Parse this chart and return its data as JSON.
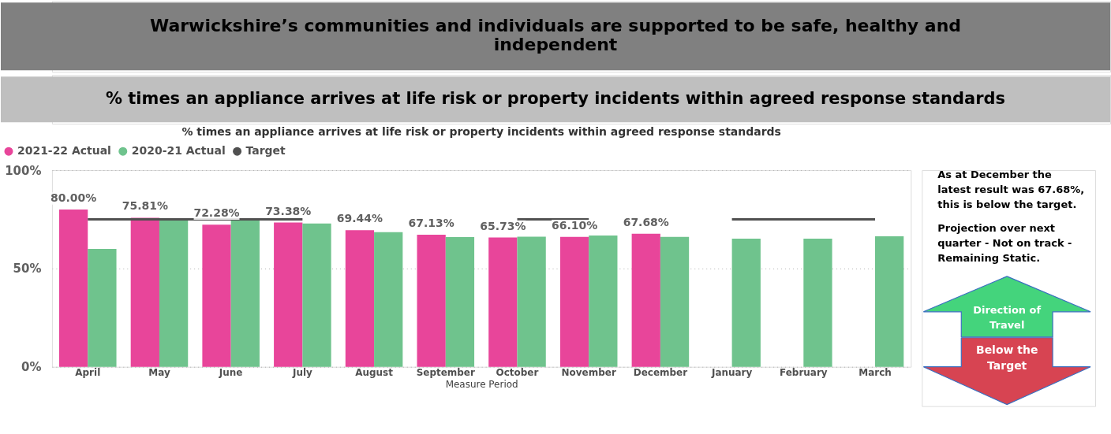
{
  "chart_data": {
    "type": "bar",
    "title": "Warwickshire’s communities and individuals are supported to be safe, healthy and\nindependent",
    "subtitle": "% times an appliance arrives at life risk or property incidents within agreed response standards",
    "xlabel": "Measure Period",
    "categories": [
      "April",
      "May",
      "June",
      "July",
      "August",
      "September",
      "October",
      "November",
      "December",
      "January",
      "February",
      "March"
    ],
    "series": [
      {
        "name": "2021-22 Actual",
        "color": "#e8459a",
        "values": [
          80.0,
          75.81,
          72.28,
          73.38,
          69.44,
          67.13,
          65.73,
          66.1,
          67.68,
          null,
          null,
          null
        ],
        "value_labels": [
          "80.00%",
          "75.81%",
          "72.28%",
          "73.38%",
          "69.44%",
          "67.13%",
          "65.73%",
          "66.10%",
          "67.68%",
          null,
          null,
          null
        ]
      },
      {
        "name": "2020-21 Actual",
        "color": "#6fc38d",
        "values": [
          60.0,
          75.0,
          75.2,
          72.9,
          68.5,
          66.0,
          66.2,
          66.8,
          66.1,
          65.2,
          65.2,
          66.4
        ]
      },
      {
        "name": "Target",
        "type": "line",
        "color": "#505050",
        "values": [
          75,
          75,
          75,
          75,
          null,
          null,
          75,
          75,
          null,
          75,
          75,
          75
        ]
      }
    ],
    "ylim": [
      0,
      100
    ],
    "yticks": [
      {
        "value": 0,
        "label": "0%"
      },
      {
        "value": 50,
        "label": "50%"
      },
      {
        "value": 100,
        "label": "100%"
      }
    ],
    "grid": "y",
    "legend": "top left",
    "annotations": [
      "% times an appliance arrives at life risk or property incidents within agreed response standards",
      "As at December the\nlatest result was 67.68%,\nthis is below the target.",
      "Projection over next\nquarter - Not on track -\nRemaining Static.",
      "Direction of\nTravel",
      "Below the\nTarget"
    ]
  }
}
